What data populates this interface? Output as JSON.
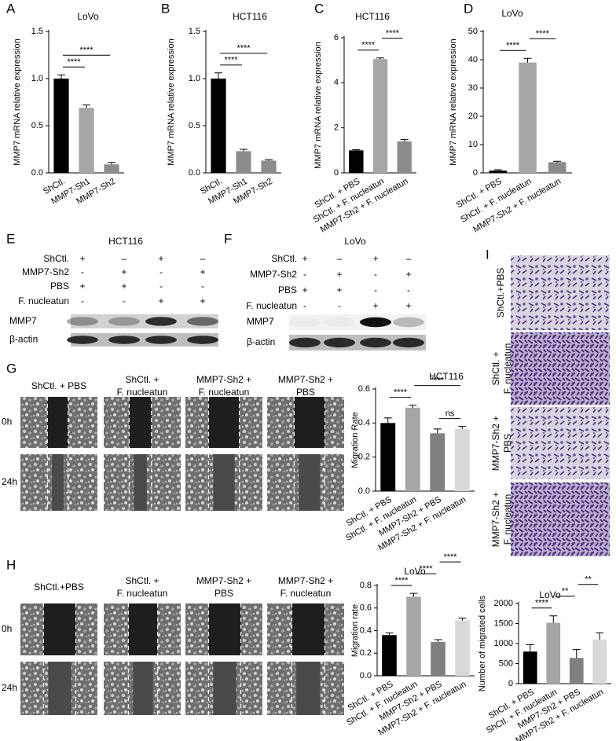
{
  "chart_data": [
    {
      "type": "bar",
      "panel": "A",
      "title": "LoVo",
      "y_label": "MMP7 mRNA relative expression",
      "categories": [
        "ShCtl.",
        "MMP7-Sh1",
        "MMP7-Sh2"
      ],
      "values": [
        1.0,
        0.69,
        0.09
      ],
      "errors": [
        0.04,
        0.03,
        0.02
      ],
      "colors": [
        "#000000",
        "#a6a6a6",
        "#8c8c8c"
      ],
      "ylim": [
        0,
        1.5
      ],
      "yticks": [
        {
          "value": 0,
          "label": "0.0"
        },
        0.5,
        {
          "value": 1,
          "label": "1.0"
        },
        1.5
      ],
      "annotations": [
        {
          "text": "****",
          "from": 0,
          "to": 1
        },
        {
          "text": "****",
          "from": 0,
          "to": 2
        }
      ]
    },
    {
      "type": "bar",
      "panel": "B",
      "title": "HCT116",
      "y_label": "MMP7 mRNA relative expression",
      "categories": [
        "ShCtl.",
        "MMP7-Sh1",
        "MMP7-Sh2"
      ],
      "values": [
        1.0,
        0.23,
        0.13
      ],
      "errors": [
        0.06,
        0.02,
        0.01
      ],
      "colors": [
        "#000000",
        "#8c8c8c",
        "#8c8c8c"
      ],
      "ylim": [
        0,
        1.5
      ],
      "yticks": [
        {
          "value": 0,
          "label": "0.0"
        },
        0.5,
        {
          "value": 1,
          "label": "1.0"
        },
        1.5
      ],
      "annotations": [
        {
          "text": "****",
          "from": 0,
          "to": 1
        },
        {
          "text": "****",
          "from": 0,
          "to": 2
        }
      ]
    },
    {
      "type": "bar",
      "panel": "C",
      "title": "HCT116",
      "y_label": "MMP7 mRNA relative expression",
      "categories": [
        "ShCtl. + PBS",
        "ShCtl. + F. nucleatun",
        "MMP7-Sh2 + F. nucleatun"
      ],
      "values": [
        1.0,
        5.05,
        1.4
      ],
      "errors": [
        0.03,
        0.05,
        0.08
      ],
      "colors": [
        "#000000",
        "#a6a6a6",
        "#8c8c8c"
      ],
      "ylim": [
        0,
        6
      ],
      "yticks": [
        0,
        2,
        4,
        6
      ],
      "annotations": [
        {
          "text": "****",
          "from": 0,
          "to": 1
        },
        {
          "text": "****",
          "from": 1,
          "to": 2
        }
      ]
    },
    {
      "type": "bar",
      "panel": "D",
      "title": "LoVo",
      "y_label": "MMP7 mRNA relative expression",
      "categories": [
        "ShCtl. + PBS",
        "ShCtl. + F. nucleatun",
        "MMP7-Sh2 + F. nucleatun"
      ],
      "values": [
        0.8,
        39,
        3.8
      ],
      "errors": [
        0.3,
        1.5,
        0.3
      ],
      "colors": [
        "#000000",
        "#a6a6a6",
        "#8c8c8c"
      ],
      "ylim": [
        0,
        50
      ],
      "yticks": [
        0,
        10,
        20,
        30,
        40,
        50
      ],
      "annotations": [
        {
          "text": "****",
          "from": 0,
          "to": 1
        },
        {
          "text": "****",
          "from": 1,
          "to": 2
        }
      ]
    },
    {
      "type": "bar",
      "title": "HCT116",
      "y_label": "Migration Rate",
      "categories": [
        "ShCtl. + PBS",
        "ShCtl. + F. nucleatun",
        "MMP7-Sh2 + PBS",
        "MMP7-Sh2 + F. nucleatun"
      ],
      "values": [
        0.4,
        0.49,
        0.34,
        0.365
      ],
      "errors": [
        0.03,
        0.015,
        0.025,
        0.015
      ],
      "colors": [
        "#000000",
        "#a6a6a6",
        "#808080",
        "#d9d9d9"
      ],
      "ylim": [
        0,
        0.6
      ],
      "yticks": [
        {
          "value": 0,
          "label": "0.0"
        },
        0.2,
        0.4,
        0.6
      ],
      "annotations": [
        {
          "text": "****",
          "from": 0,
          "to": 1
        },
        {
          "text": "ns",
          "from": 2,
          "to": 3
        },
        {
          "text": "****",
          "from": 1,
          "to": 3
        }
      ]
    },
    {
      "type": "bar",
      "title": "LoVo",
      "y_label": "Migration rate",
      "categories": [
        "ShCtl. + PBS",
        "ShCtl. + F. nucleatun",
        "MMP7-Sh2 + PBS",
        "MMP7-Sh2 + F. nucleatun"
      ],
      "values": [
        0.36,
        0.7,
        0.3,
        0.49
      ],
      "errors": [
        0.02,
        0.03,
        0.02,
        0.02
      ],
      "colors": [
        "#000000",
        "#a6a6a6",
        "#808080",
        "#d9d9d9"
      ],
      "ylim": [
        0,
        0.8
      ],
      "yticks": [
        {
          "value": 0,
          "label": "0.0"
        },
        0.2,
        0.4,
        0.6,
        0.8
      ],
      "annotations": [
        {
          "text": "****",
          "from": 0,
          "to": 1
        },
        {
          "text": "****",
          "from": 1,
          "to": 2
        },
        {
          "text": "****",
          "from": 2,
          "to": 3
        }
      ]
    },
    {
      "type": "bar",
      "title": "LoVo",
      "y_label": "Number of migrated cells",
      "categories": [
        "ShCtl. + PBS",
        "ShCtl. + F. nucleatun",
        "MMP7-Sh2 + PBS",
        "MMP7-Sh2 + F. nucleatun"
      ],
      "values": [
        800,
        1520,
        640,
        1100
      ],
      "errors": [
        170,
        170,
        210,
        170
      ],
      "colors": [
        "#000000",
        "#a6a6a6",
        "#808080",
        "#d9d9d9"
      ],
      "ylim": [
        0,
        2000
      ],
      "yticks": [
        0,
        500,
        1000,
        1500,
        2000
      ],
      "annotations": [
        {
          "text": "****",
          "from": 0,
          "to": 1
        },
        {
          "text": "**",
          "from": 1,
          "to": 2
        },
        {
          "text": "**",
          "from": 2,
          "to": 3
        }
      ]
    }
  ],
  "blots": [
    {
      "panel": "E",
      "title": "HCT116",
      "rows": [
        {
          "label": "ShCtl.",
          "signs": [
            "+",
            "–",
            "+",
            "–"
          ]
        },
        {
          "label": "MMP7-Sh2",
          "signs": [
            "-",
            "+",
            "-",
            "+"
          ]
        },
        {
          "label": "PBS",
          "signs": [
            "+",
            "+",
            "-",
            "-"
          ]
        },
        {
          "label": "F. nucleatun",
          "signs": [
            "-",
            "-",
            "+",
            "+"
          ]
        }
      ],
      "bands": [
        "MMP7",
        "β-actin"
      ]
    },
    {
      "panel": "F",
      "title": "LoVo",
      "rows": [
        {
          "label": "ShCtl.",
          "signs": [
            "+",
            "–",
            "+",
            "–"
          ]
        },
        {
          "label": "MMP7-Sh2",
          "signs": [
            "-",
            "+",
            "-",
            "+"
          ]
        },
        {
          "label": "PBS",
          "signs": [
            "+",
            "+",
            "-",
            "-"
          ]
        },
        {
          "label": "F. nucleatun",
          "signs": [
            "-",
            "-",
            "+",
            "+"
          ]
        }
      ],
      "bands": [
        "MMP7",
        "β-actin"
      ]
    }
  ],
  "wound_assays": [
    {
      "panel": "G",
      "columns": [
        [
          "ShCtl. + PBS"
        ],
        [
          "ShCtl. +",
          "F. nucleatun"
        ],
        [
          "MMP7-Sh2 +",
          "F. nucleatun"
        ],
        [
          "MMP7-Sh2 +",
          "PBS"
        ]
      ],
      "rows": [
        "0h",
        "24h"
      ]
    },
    {
      "panel": "H",
      "columns": [
        [
          "ShCtl.+PBS"
        ],
        [
          "ShCtl. +",
          "F. nucleatun"
        ],
        [
          "MMP7-Sh2 +",
          "PBS"
        ],
        [
          "MMP7-Sh2 +",
          "F. nucleatun"
        ]
      ],
      "rows": [
        "0h",
        "24h"
      ]
    }
  ],
  "transwell": {
    "panel": "I",
    "rows": [
      [
        "ShCtl.+PBS"
      ],
      [
        "ShCtl. +",
        "F. nucleatun"
      ],
      [
        "MMP7-Sh2 +",
        "PBS"
      ],
      [
        "MMP7-Sh2 +",
        "F. nucleatun"
      ]
    ]
  }
}
